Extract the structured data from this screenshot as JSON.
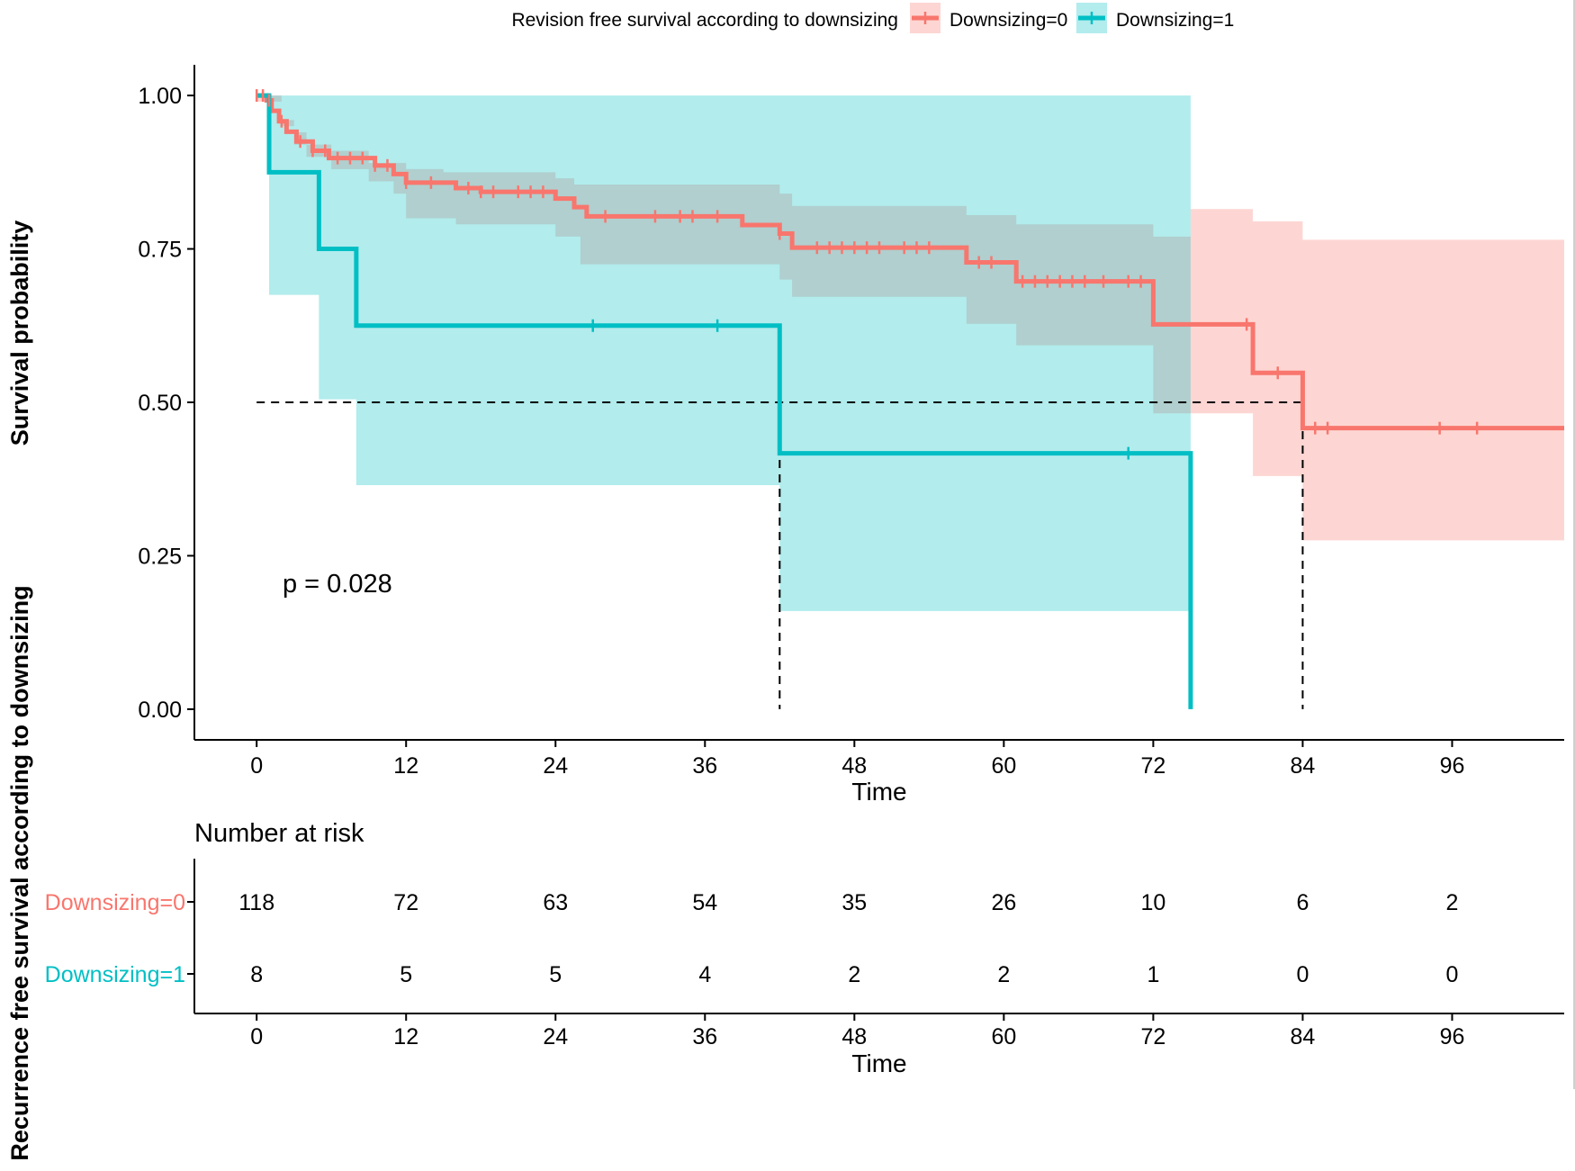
{
  "chart_data": {
    "type": "line",
    "subtype": "kaplan-meier",
    "legend": {
      "title": "Revision free survival according to downsizing",
      "placement": "top",
      "entries": [
        "Downsizing=0",
        "Downsizing=1"
      ]
    },
    "ylabel": "Survival probability",
    "xlabel": "Time",
    "outer_ylabel": "Recurrence free survival according to downsizing",
    "xlim": [
      -5,
      105
    ],
    "ylim": [
      -0.05,
      1.05
    ],
    "x_ticks": [
      "0",
      "12",
      "24",
      "36",
      "48",
      "60",
      "72",
      "84",
      "96"
    ],
    "x_tick_values": [
      0,
      12,
      24,
      36,
      48,
      60,
      72,
      84,
      96
    ],
    "y_ticks": [
      "0.00",
      "0.25",
      "0.50",
      "0.75",
      "1.00"
    ],
    "y_tick_values": [
      0,
      0.25,
      0.5,
      0.75,
      1.0
    ],
    "pvalue_text": "p = 0.028",
    "median_line": {
      "y": 0.5,
      "x_start": 0,
      "drops": [
        42,
        84
      ]
    },
    "series": [
      {
        "name": "Downsizing=0",
        "color": "#F8766D",
        "band_color": "#F8766D",
        "steps": [
          [
            0,
            1.0
          ],
          [
            0.8,
            0.992
          ],
          [
            1.2,
            0.975
          ],
          [
            1.8,
            0.958
          ],
          [
            2.4,
            0.941
          ],
          [
            3.2,
            0.925
          ],
          [
            4.5,
            0.91
          ],
          [
            5.8,
            0.898
          ],
          [
            9.5,
            0.886
          ],
          [
            11,
            0.872
          ],
          [
            12,
            0.858
          ],
          [
            16,
            0.849
          ],
          [
            18,
            0.843
          ],
          [
            24,
            0.832
          ],
          [
            25.5,
            0.818
          ],
          [
            26.5,
            0.803
          ],
          [
            39,
            0.789
          ],
          [
            42,
            0.775
          ],
          [
            43,
            0.752
          ],
          [
            57,
            0.728
          ],
          [
            61,
            0.697
          ],
          [
            72,
            0.627
          ],
          [
            80,
            0.548
          ],
          [
            84,
            0.458
          ],
          [
            105,
            0.458
          ]
        ],
        "upper": [
          [
            0,
            1.0
          ],
          [
            2,
            0.96
          ],
          [
            3,
            0.94
          ],
          [
            4,
            0.92
          ],
          [
            6,
            0.91
          ],
          [
            9,
            0.89
          ],
          [
            12,
            0.88
          ],
          [
            15,
            0.875
          ],
          [
            24,
            0.865
          ],
          [
            25.5,
            0.855
          ],
          [
            42,
            0.84
          ],
          [
            43,
            0.82
          ],
          [
            57,
            0.805
          ],
          [
            61,
            0.79
          ],
          [
            72,
            0.77
          ],
          [
            75,
            0.815
          ],
          [
            80,
            0.795
          ],
          [
            84,
            0.765
          ],
          [
            105,
            0.765
          ]
        ],
        "lower": [
          [
            0,
            0.99
          ],
          [
            2,
            0.95
          ],
          [
            3,
            0.92
          ],
          [
            4,
            0.9
          ],
          [
            6,
            0.88
          ],
          [
            9,
            0.86
          ],
          [
            11,
            0.84
          ],
          [
            12,
            0.8
          ],
          [
            16,
            0.79
          ],
          [
            24,
            0.77
          ],
          [
            26,
            0.725
          ],
          [
            42,
            0.7
          ],
          [
            43,
            0.672
          ],
          [
            57,
            0.628
          ],
          [
            61,
            0.593
          ],
          [
            72,
            0.482
          ],
          [
            80,
            0.38
          ],
          [
            84,
            0.275
          ],
          [
            105,
            0.275
          ]
        ],
        "censor_x": [
          0,
          0.5,
          1,
          2,
          3.5,
          4.5,
          5.5,
          6.5,
          7.5,
          8.5,
          9.5,
          10.5,
          12,
          14,
          17,
          18,
          19,
          21,
          22,
          23,
          28,
          32,
          34,
          35,
          37,
          42,
          45,
          46,
          47,
          48,
          49,
          50,
          52,
          53,
          54,
          58,
          59,
          61.5,
          62.5,
          63.5,
          64.5,
          65.5,
          66.5,
          68,
          70,
          71,
          79.5,
          82,
          85,
          86,
          95,
          98
        ],
        "risk": [
          "118",
          "72",
          "63",
          "54",
          "35",
          "26",
          "10",
          "6",
          "2"
        ]
      },
      {
        "name": "Downsizing=1",
        "color": "#00BFC4",
        "band_color": "#00BFC4",
        "steps": [
          [
            0,
            1.0
          ],
          [
            1,
            0.875
          ],
          [
            5,
            0.75
          ],
          [
            8,
            0.625
          ],
          [
            42,
            0.417
          ],
          [
            75,
            0.0
          ]
        ],
        "upper": [
          [
            0,
            1.0
          ],
          [
            75,
            1.0
          ]
        ],
        "lower": [
          [
            0,
            1.0
          ],
          [
            1,
            0.675
          ],
          [
            5,
            0.505
          ],
          [
            8,
            0.365
          ],
          [
            42,
            0.16
          ],
          [
            75,
            0.16
          ]
        ],
        "censor_x": [
          27,
          37,
          70
        ],
        "risk": [
          "8",
          "5",
          "5",
          "4",
          "2",
          "2",
          "1",
          "0",
          "0"
        ]
      }
    ],
    "risk_table": {
      "title": "Number at risk",
      "xlabel": "Time",
      "rows": [
        "Downsizing=0",
        "Downsizing=1"
      ]
    }
  }
}
